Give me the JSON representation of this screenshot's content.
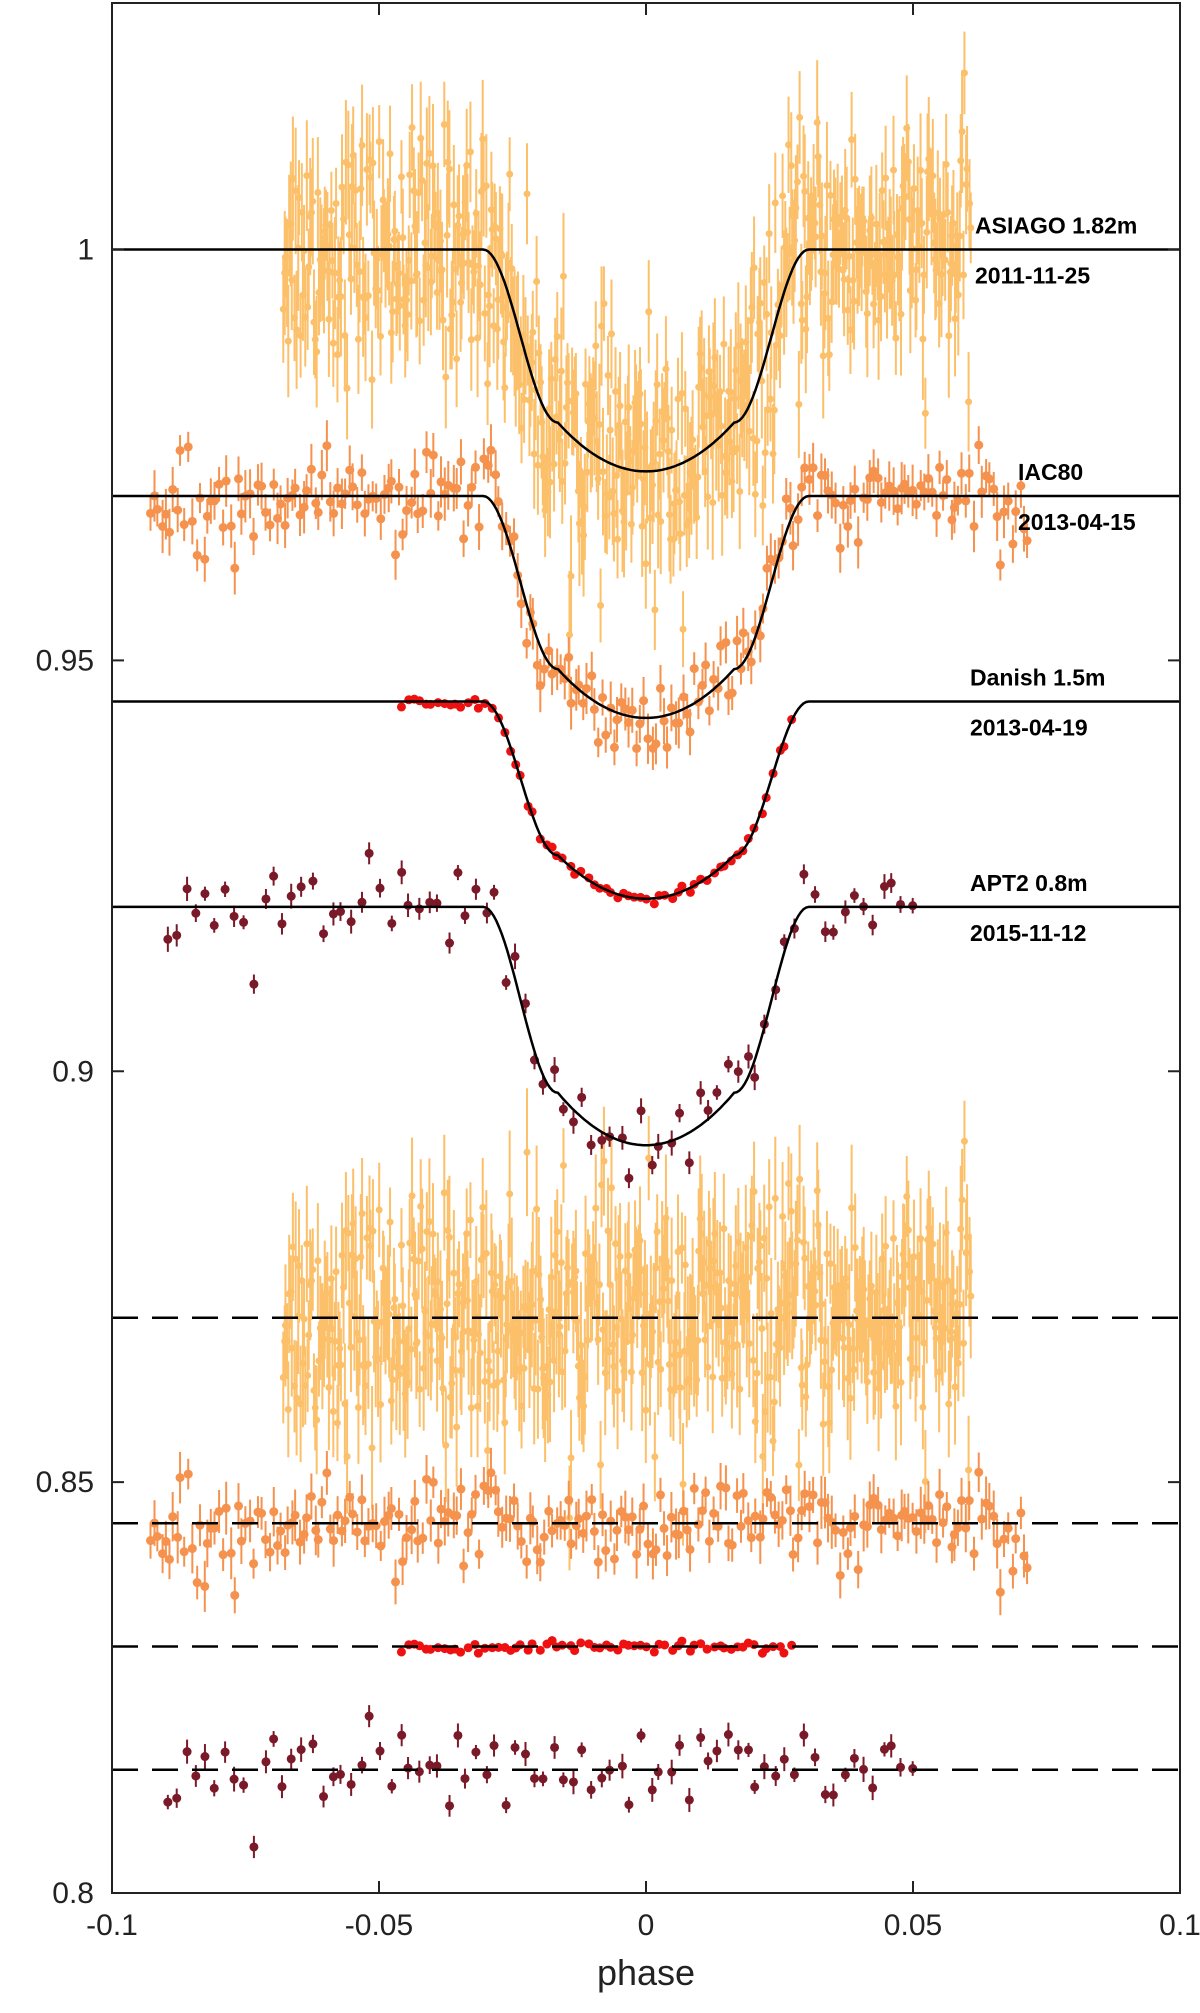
{
  "chart_data": {
    "type": "scatter",
    "title": "",
    "xlabel": "phase",
    "ylabel": "",
    "xlim": [
      -0.1,
      0.1
    ],
    "ylim": [
      0.8,
      1.03
    ],
    "x_ticks": [
      -0.1,
      -0.05,
      0,
      0.05,
      0.1
    ],
    "x_tick_labels": [
      "-0.1",
      "-0.05",
      "0",
      "0.05",
      "0.1"
    ],
    "y_ticks": [
      0.8,
      0.85,
      0.9,
      0.95,
      1
    ],
    "y_tick_labels": [
      "0.8",
      "0.85",
      "0.9",
      "0.95",
      "1"
    ],
    "grid": false,
    "legend": "none",
    "transit_depth_model": "approximate transit model curves",
    "series": [
      {
        "telescope": "ASIAGO 1.82m",
        "date": "2011-11-25",
        "color": "#fcc06a",
        "baseline": 1.0,
        "depth": 0.027,
        "phase_range": [
          -0.068,
          0.061
        ],
        "n_points": 560,
        "scatter": 0.007,
        "error": 0.006,
        "residual_offset": 0.87,
        "residual_style": "dashed"
      },
      {
        "telescope": "IAC80",
        "date": "2013-04-15",
        "color": "#f5924e",
        "baseline": 0.97,
        "depth": 0.027,
        "phase_range": [
          -0.093,
          0.072
        ],
        "n_points": 230,
        "scatter": 0.0026,
        "error": 0.0025,
        "residual_offset": 0.845,
        "residual_style": "dashed"
      },
      {
        "telescope": "Danish 1.5m",
        "date": "2013-04-19",
        "color": "#ee1111",
        "baseline": 0.945,
        "depth": 0.024,
        "phase_range": [
          -0.046,
          0.028
        ],
        "n_points": 66,
        "scatter": 0.0004,
        "error": 0.0004,
        "residual_offset": 0.83,
        "residual_style": "dashed"
      },
      {
        "telescope": "APT2 0.8m",
        "date": "2015-11-12",
        "color": "#7a1a28",
        "baseline": 0.92,
        "depth": 0.029,
        "phase_range": [
          -0.09,
          0.051
        ],
        "n_points": 78,
        "scatter": 0.0025,
        "error": 0.0012,
        "residual_offset": 0.815,
        "residual_style": "dashed"
      }
    ]
  }
}
